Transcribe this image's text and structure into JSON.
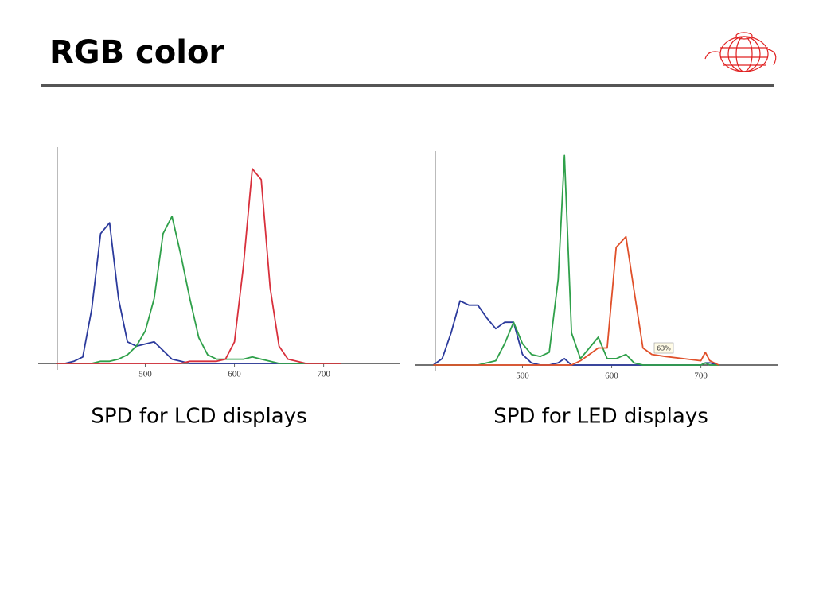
{
  "slide": {
    "title": "RGB color"
  },
  "chart_data": [
    {
      "type": "line",
      "title": "SPD for LCD displays",
      "x": [
        400,
        410,
        420,
        430,
        440,
        450,
        460,
        470,
        480,
        490,
        500,
        510,
        520,
        530,
        540,
        550,
        560,
        570,
        580,
        590,
        600,
        610,
        620,
        630,
        640,
        650,
        660,
        670,
        680,
        690,
        700,
        710,
        720
      ],
      "xlim": [
        380,
        786
      ],
      "xticks": [
        500,
        600,
        700
      ],
      "ylim": [
        0,
        1
      ],
      "series": [
        {
          "color": "#2b3a9c",
          "values": [
            0,
            0,
            0.01,
            0.03,
            0.25,
            0.6,
            0.65,
            0.3,
            0.1,
            0.08,
            0.09,
            0.1,
            0.06,
            0.02,
            0.01,
            0,
            0,
            0,
            0,
            0,
            0,
            0,
            0,
            0,
            0,
            0,
            0,
            0,
            0,
            0,
            0,
            0,
            0
          ]
        },
        {
          "color": "#2fa04a",
          "values": [
            0,
            0,
            0,
            0,
            0,
            0.01,
            0.01,
            0.02,
            0.04,
            0.08,
            0.15,
            0.3,
            0.6,
            0.68,
            0.5,
            0.3,
            0.12,
            0.04,
            0.02,
            0.02,
            0.02,
            0.02,
            0.03,
            0.02,
            0.01,
            0,
            0,
            0,
            0,
            0,
            0,
            0,
            0
          ]
        },
        {
          "color": "#d8303c",
          "values": [
            0,
            0,
            0,
            0,
            0,
            0,
            0,
            0,
            0,
            0,
            0,
            0,
            0,
            0,
            0,
            0.01,
            0.01,
            0.01,
            0.01,
            0.02,
            0.1,
            0.45,
            0.9,
            0.85,
            0.35,
            0.08,
            0.02,
            0.01,
            0,
            0,
            0,
            0,
            0
          ]
        }
      ]
    },
    {
      "type": "line",
      "title": "SPD for LED displays",
      "x": [
        400,
        410,
        420,
        430,
        440,
        450,
        460,
        470,
        480,
        490,
        500,
        510,
        520,
        530,
        540,
        547,
        555,
        565,
        575,
        585,
        595,
        605,
        616,
        625,
        635,
        645,
        660,
        680,
        700,
        705,
        710,
        720
      ],
      "xlim": [
        380,
        786
      ],
      "xticks": [
        500,
        600,
        700
      ],
      "ylim": [
        0,
        1
      ],
      "annotations": [
        {
          "text": "63%"
        }
      ],
      "series": [
        {
          "color": "#2b3a9c",
          "values": [
            0,
            0.03,
            0.15,
            0.3,
            0.28,
            0.28,
            0.22,
            0.17,
            0.2,
            0.2,
            0.05,
            0.01,
            0,
            0,
            0.01,
            0.03,
            0,
            0,
            0,
            0,
            0,
            0,
            0,
            0,
            0,
            0,
            0,
            0,
            0,
            0.01,
            0.01,
            0
          ]
        },
        {
          "color": "#2fa04a",
          "values": [
            0,
            0,
            0,
            0,
            0,
            0,
            0.01,
            0.02,
            0.1,
            0.2,
            0.1,
            0.05,
            0.04,
            0.06,
            0.4,
            0.98,
            0.15,
            0.03,
            0.08,
            0.13,
            0.03,
            0.03,
            0.05,
            0.01,
            0,
            0,
            0,
            0,
            0,
            0.01,
            0,
            0
          ]
        },
        {
          "color": "#e0502a",
          "values": [
            0,
            0,
            0,
            0,
            0,
            0,
            0,
            0,
            0,
            0,
            0,
            0,
            0,
            0,
            0,
            0,
            0,
            0.02,
            0.05,
            0.08,
            0.08,
            0.55,
            0.6,
            0.35,
            0.08,
            0.05,
            0.04,
            0.03,
            0.02,
            0.06,
            0.02,
            0
          ]
        }
      ]
    }
  ]
}
